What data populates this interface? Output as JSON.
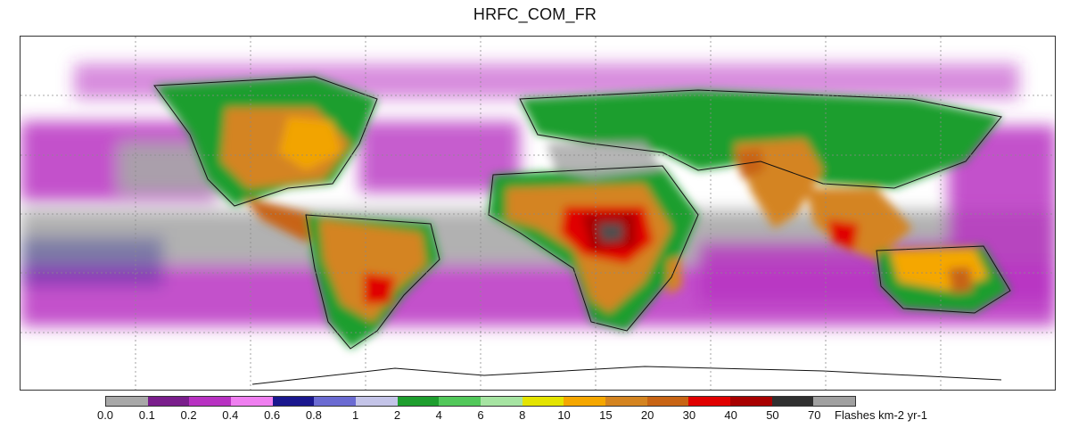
{
  "title": "HRFC_COM_FR",
  "colorbar": {
    "units": "Flashes km-2 yr-1",
    "labels": [
      "0.0",
      "0.1",
      "0.2",
      "0.4",
      "0.6",
      "0.8",
      "1",
      "2",
      "4",
      "6",
      "8",
      "10",
      "15",
      "20",
      "30",
      "40",
      "50",
      "70"
    ],
    "colors": [
      "#a8a8a8",
      "#7a1e8c",
      "#b832c2",
      "#ef7ff0",
      "#1a178e",
      "#6b6bd2",
      "#c4c4e8",
      "#1e9e2e",
      "#52c85a",
      "#a6e4a2",
      "#e4e400",
      "#f5a700",
      "#d48420",
      "#c86414",
      "#e00000",
      "#a80000",
      "#303030",
      "#a0a0a0"
    ]
  },
  "map_colors": {
    "ocean_bg": "#ffffff",
    "coast": "#111111",
    "grid": "#8a8a8a"
  }
}
